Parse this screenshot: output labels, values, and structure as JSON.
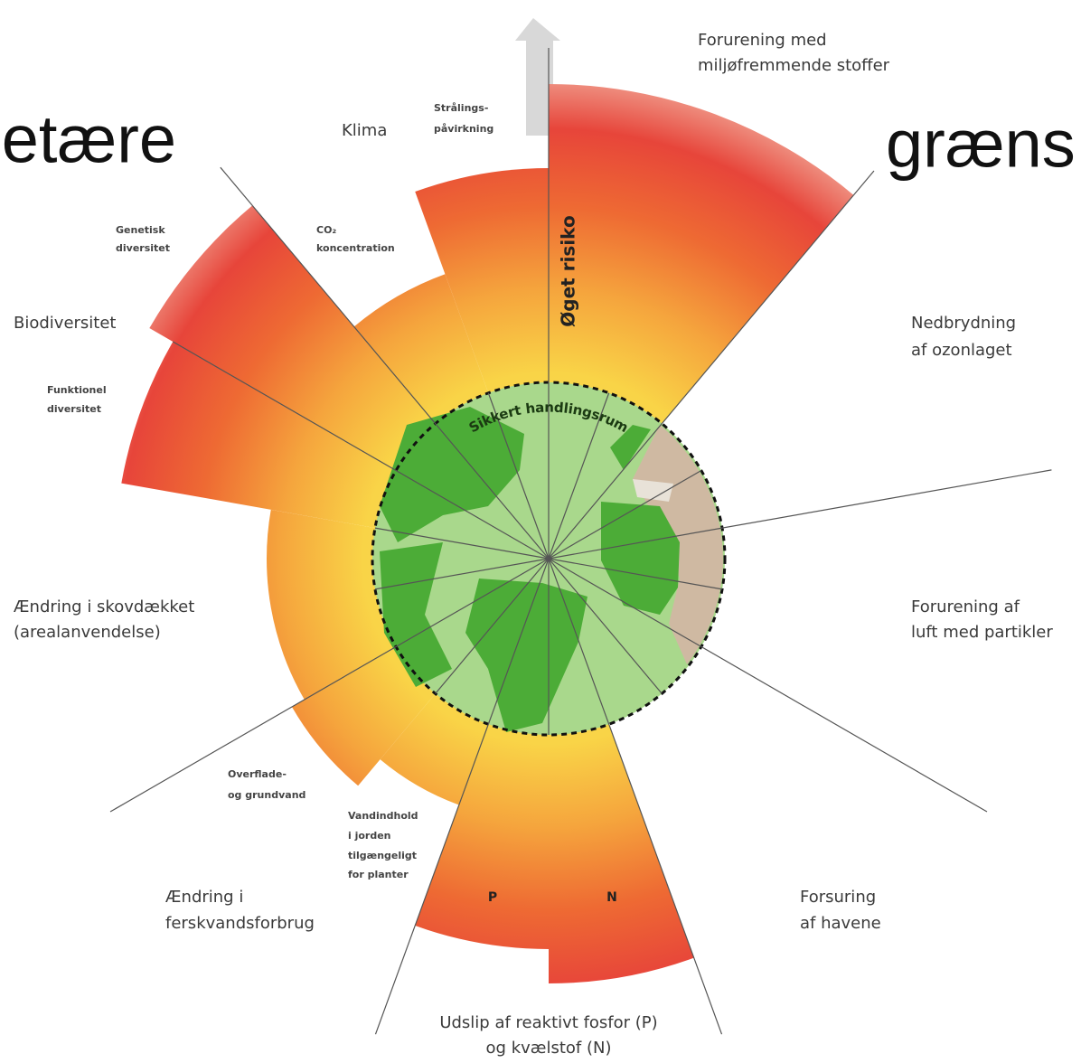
{
  "title_fragments": [
    "etære",
    "græns"
  ],
  "labels": {
    "novel_entities": [
      "Forurening med",
      "miljøfremmende stoffer"
    ],
    "radiative_forcing": [
      "Strålings-",
      "påvirkning"
    ],
    "climate": "Klima",
    "co2": [
      "CO₂",
      "koncentration"
    ],
    "genetic": [
      "Genetisk",
      "diversitet"
    ],
    "biodiversity": "Biodiversitet",
    "functional": [
      "Funktionel",
      "diversitet"
    ],
    "land": [
      "Ændring i skovdækket",
      "(arealanvendelse)"
    ],
    "blue_water": [
      "Overflade-",
      "og grundvand"
    ],
    "green_water": [
      "Vandindhold",
      "i jorden",
      "tilgængeligt",
      "for planter"
    ],
    "freshwater": [
      "Ændring i",
      "ferskvandsforbrug"
    ],
    "p": "P",
    "n": "N",
    "biogeochemical": [
      "Udslip af reaktivt fosfor (P)",
      "og kvælstof (N)"
    ],
    "ocean": [
      "Forsuring",
      "af havene"
    ],
    "aerosols": [
      "Forurening af",
      "luft med partikler"
    ],
    "ozone": [
      "Nedbrydning",
      "af ozonlaget"
    ],
    "risk": "Øget risiko",
    "safe": "Sikkert handlingsrum"
  }
}
